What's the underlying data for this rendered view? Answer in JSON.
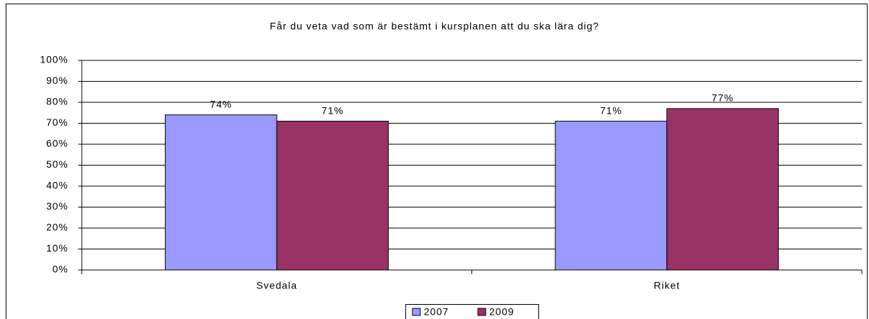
{
  "chart_data": {
    "type": "bar",
    "title": "Får du veta vad som är bestämt i kursplanen att du ska lära dig?",
    "categories": [
      "Svedala",
      "Riket"
    ],
    "series": [
      {
        "name": "2007",
        "color": "#9999ff",
        "values": [
          74,
          71
        ],
        "value_labels": [
          "74%",
          "71%"
        ]
      },
      {
        "name": "2009",
        "color": "#993366",
        "values": [
          71,
          77
        ],
        "value_labels": [
          "71%",
          "77%"
        ]
      }
    ],
    "ylim": [
      0,
      100
    ],
    "yticks": [
      {
        "value": 0,
        "label": "0%"
      },
      {
        "value": 10,
        "label": "10%"
      },
      {
        "value": 20,
        "label": "20%"
      },
      {
        "value": 30,
        "label": "30%"
      },
      {
        "value": 40,
        "label": "40%"
      },
      {
        "value": 50,
        "label": "50%"
      },
      {
        "value": 60,
        "label": "60%"
      },
      {
        "value": 70,
        "label": "70%"
      },
      {
        "value": 80,
        "label": "80%"
      },
      {
        "value": 90,
        "label": "90%"
      },
      {
        "value": 100,
        "label": "100%"
      }
    ],
    "grid": true,
    "legend": "bottom"
  }
}
